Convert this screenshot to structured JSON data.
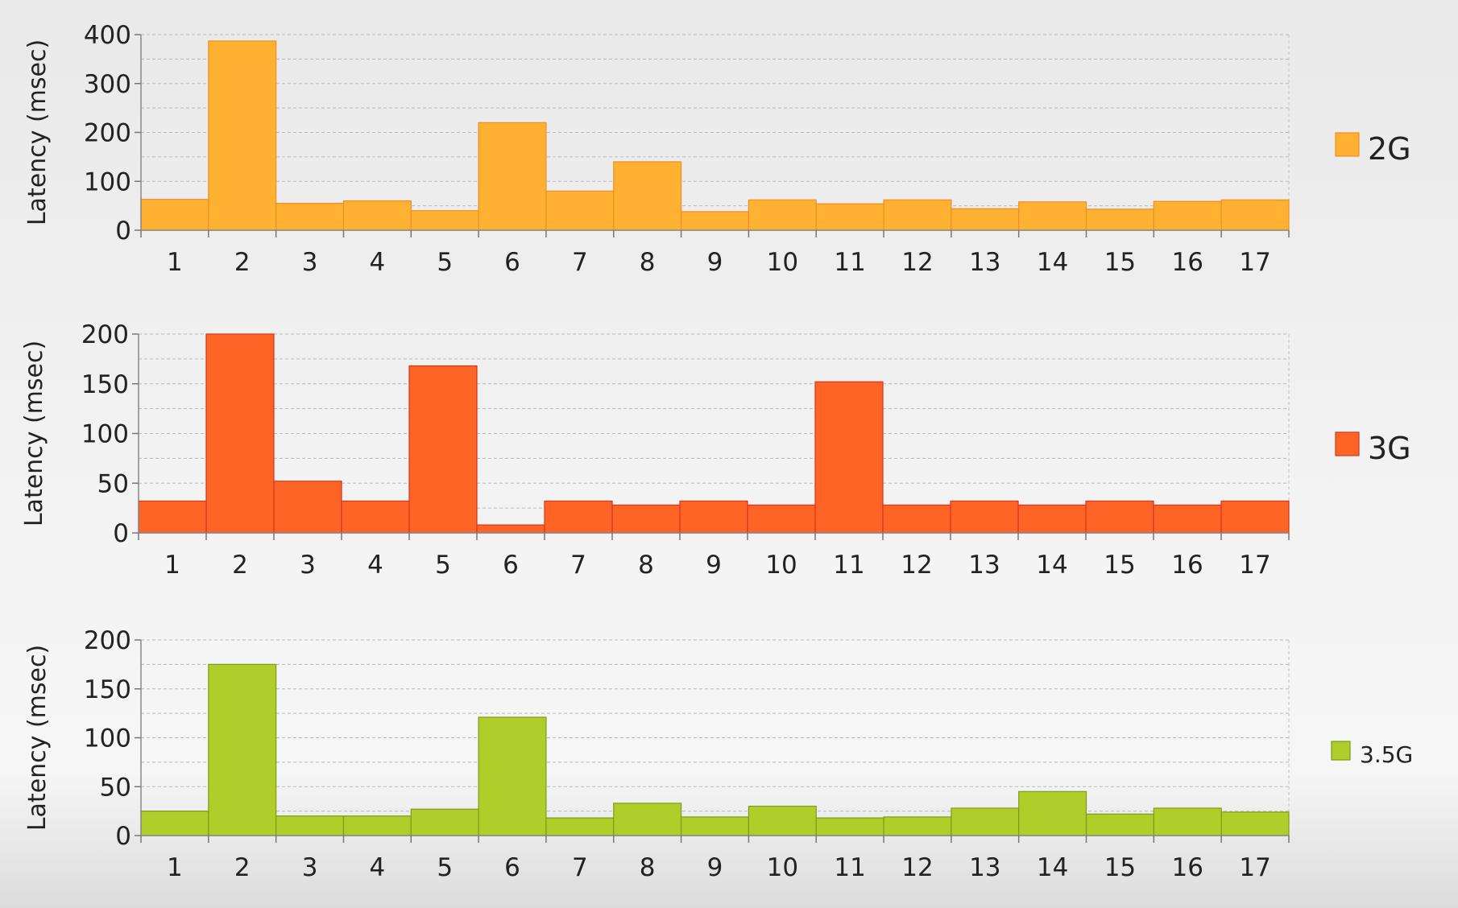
{
  "chart_data": [
    {
      "type": "bar",
      "categories": [
        "1",
        "2",
        "3",
        "4",
        "5",
        "6",
        "7",
        "8",
        "9",
        "10",
        "11",
        "12",
        "13",
        "14",
        "15",
        "16",
        "17"
      ],
      "series": [
        {
          "name": "2G",
          "values": [
            63,
            387,
            55,
            60,
            40,
            220,
            80,
            140,
            38,
            62,
            54,
            62,
            44,
            58,
            43,
            59,
            62
          ]
        }
      ],
      "xlabel": "",
      "ylabel": "Latency (msec)",
      "ylim": [
        0,
        400
      ],
      "yticks": [
        0,
        100,
        200,
        300,
        400
      ],
      "grid": true,
      "legend": "right",
      "color": "#ffb232",
      "stroke": "#f28c26"
    },
    {
      "type": "bar",
      "categories": [
        "1",
        "2",
        "3",
        "4",
        "5",
        "6",
        "7",
        "8",
        "9",
        "10",
        "11",
        "12",
        "13",
        "14",
        "15",
        "16",
        "17"
      ],
      "series": [
        {
          "name": "3G",
          "values": [
            32,
            200,
            52,
            32,
            168,
            8,
            32,
            28,
            32,
            28,
            152,
            28,
            32,
            28,
            32,
            28,
            32
          ]
        }
      ],
      "xlabel": "",
      "ylabel": "Latency (msec)",
      "ylim": [
        0,
        200
      ],
      "yticks": [
        0,
        50,
        100,
        150,
        200
      ],
      "grid": true,
      "legend": "right",
      "color": "#ff6427",
      "stroke": "#d8341e"
    },
    {
      "type": "bar",
      "categories": [
        "1",
        "2",
        "3",
        "4",
        "5",
        "6",
        "7",
        "8",
        "9",
        "10",
        "11",
        "12",
        "13",
        "14",
        "15",
        "16",
        "17"
      ],
      "series": [
        {
          "name": "3.5G",
          "values": [
            25,
            175,
            20,
            20,
            27,
            121,
            18,
            33,
            19,
            30,
            18,
            19,
            28,
            45,
            22,
            28,
            24
          ]
        }
      ],
      "xlabel": "",
      "ylabel": "Latency (msec)",
      "ylim": [
        0,
        200
      ],
      "yticks": [
        0,
        50,
        100,
        150,
        200
      ],
      "grid": true,
      "legend": "right",
      "color": "#b1cd2a",
      "stroke": "#7f9a1c"
    }
  ]
}
